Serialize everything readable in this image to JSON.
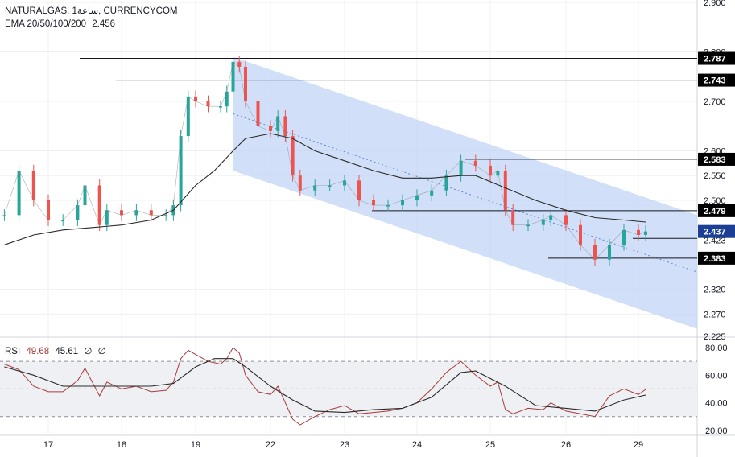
{
  "header": {
    "symbol": "NATURALGAS, 1ساعة, CURRENCYCOM",
    "ema_label": "EMA 20/50/100/200",
    "ema_value": "2.456"
  },
  "rsi_header": {
    "label": "RSI",
    "value": "49.68",
    "signal": "45.61",
    "extra1": "∅",
    "extra2": "∅"
  },
  "colors": {
    "up": "#26a69a",
    "down": "#ef5350",
    "channel": "#c2d6f5",
    "ema": "#2a2a2a",
    "rsi": "#a83a3a",
    "rsi_ma": "#2a2a2a",
    "current_tag": "#1c3f95"
  },
  "chart_data": [
    {
      "type": "candlestick",
      "title": "",
      "x_tick_labels": [
        "17",
        "18",
        "19",
        "22",
        "23",
        "24",
        "25",
        "26",
        "29"
      ],
      "price_axis_labels": [
        "2.900",
        "2.800",
        "2.700",
        "2.600",
        "2.550",
        "2.500",
        "2.320",
        "2.270",
        "2.225"
      ],
      "ylim": [
        2.225,
        2.905
      ],
      "horizontal_levels": [
        {
          "label": "2.787",
          "value": 2.787
        },
        {
          "label": "2.743",
          "value": 2.743
        },
        {
          "label": "2.583",
          "value": 2.583
        },
        {
          "label": "2.479",
          "value": 2.479
        },
        {
          "label": "2.383",
          "value": 2.383
        }
      ],
      "current_price": {
        "label": "2.437",
        "value": 2.437
      },
      "hidden_label": {
        "label": "2.423",
        "value": 2.423
      },
      "channel": {
        "x_start": 19.6,
        "x_end": 29.8,
        "upper_start": 2.79,
        "upper_end": 2.47,
        "lower_start": 2.56,
        "lower_end": 2.24
      },
      "price_path": [
        [
          16.4,
          2.47
        ],
        [
          16.6,
          2.56
        ],
        [
          16.8,
          2.5
        ],
        [
          17.0,
          2.46
        ],
        [
          17.2,
          2.46
        ],
        [
          17.4,
          2.49
        ],
        [
          17.5,
          2.53
        ],
        [
          17.7,
          2.45
        ],
        [
          17.8,
          2.48
        ],
        [
          18.0,
          2.47
        ],
        [
          18.2,
          2.48
        ],
        [
          18.4,
          2.47
        ],
        [
          18.6,
          2.47
        ],
        [
          18.7,
          2.49
        ],
        [
          18.8,
          2.63
        ],
        [
          18.9,
          2.71
        ],
        [
          19.0,
          2.7
        ],
        [
          19.2,
          2.69
        ],
        [
          19.4,
          2.69
        ],
        [
          19.5,
          2.72
        ],
        [
          19.6,
          2.78
        ],
        [
          19.7,
          2.77
        ],
        [
          19.8,
          2.7
        ],
        [
          20.0,
          2.65
        ],
        [
          20.2,
          2.64
        ],
        [
          20.3,
          2.67
        ],
        [
          20.4,
          2.63
        ],
        [
          20.5,
          2.55
        ],
        [
          20.6,
          2.52
        ],
        [
          20.8,
          2.53
        ],
        [
          21.0,
          2.53
        ],
        [
          21.2,
          2.54
        ],
        [
          21.4,
          2.5
        ],
        [
          21.6,
          2.49
        ],
        [
          21.8,
          2.49
        ],
        [
          22.0,
          2.5
        ],
        [
          22.2,
          2.51
        ],
        [
          22.4,
          2.52
        ],
        [
          22.6,
          2.55
        ],
        [
          22.8,
          2.58
        ],
        [
          23.0,
          2.57
        ],
        [
          23.2,
          2.55
        ],
        [
          23.3,
          2.56
        ],
        [
          23.4,
          2.48
        ],
        [
          23.5,
          2.45
        ],
        [
          23.7,
          2.45
        ],
        [
          23.9,
          2.46
        ],
        [
          24.0,
          2.47
        ],
        [
          24.2,
          2.45
        ],
        [
          24.4,
          2.41
        ],
        [
          24.6,
          2.38
        ],
        [
          24.8,
          2.41
        ],
        [
          25.0,
          2.44
        ],
        [
          25.2,
          2.43
        ],
        [
          25.3,
          2.437
        ]
      ],
      "ema_path": [
        [
          16.4,
          2.41
        ],
        [
          16.8,
          2.43
        ],
        [
          17.2,
          2.44
        ],
        [
          17.6,
          2.445
        ],
        [
          18.0,
          2.45
        ],
        [
          18.4,
          2.46
        ],
        [
          18.7,
          2.48
        ],
        [
          19.0,
          2.53
        ],
        [
          19.3,
          2.56
        ],
        [
          19.6,
          2.6
        ],
        [
          19.8,
          2.625
        ],
        [
          20.2,
          2.635
        ],
        [
          20.5,
          2.625
        ],
        [
          20.8,
          2.6
        ],
        [
          21.2,
          2.58
        ],
        [
          21.6,
          2.56
        ],
        [
          22.0,
          2.545
        ],
        [
          22.4,
          2.545
        ],
        [
          22.8,
          2.55
        ],
        [
          23.0,
          2.55
        ],
        [
          23.4,
          2.525
        ],
        [
          23.8,
          2.5
        ],
        [
          24.2,
          2.48
        ],
        [
          24.6,
          2.465
        ],
        [
          25.0,
          2.46
        ],
        [
          25.3,
          2.456
        ]
      ]
    },
    {
      "type": "line",
      "title": "",
      "name": "RSI",
      "y_tick_labels": [
        "80.00",
        "60.00",
        "40.00",
        "20.00"
      ],
      "ylim": [
        17,
        87
      ],
      "bands": [
        70,
        50,
        30
      ],
      "rsi_path": [
        [
          16.4,
          68
        ],
        [
          16.6,
          64
        ],
        [
          16.8,
          52
        ],
        [
          17.0,
          48
        ],
        [
          17.2,
          48
        ],
        [
          17.4,
          56
        ],
        [
          17.5,
          65
        ],
        [
          17.7,
          45
        ],
        [
          17.8,
          55
        ],
        [
          18.0,
          50
        ],
        [
          18.2,
          52
        ],
        [
          18.4,
          48
        ],
        [
          18.6,
          49
        ],
        [
          18.7,
          55
        ],
        [
          18.8,
          72
        ],
        [
          18.9,
          78
        ],
        [
          19.0,
          75
        ],
        [
          19.2,
          70
        ],
        [
          19.4,
          68
        ],
        [
          19.5,
          72
        ],
        [
          19.6,
          80
        ],
        [
          19.7,
          76
        ],
        [
          19.8,
          60
        ],
        [
          20.0,
          48
        ],
        [
          20.2,
          46
        ],
        [
          20.3,
          52
        ],
        [
          20.4,
          40
        ],
        [
          20.5,
          28
        ],
        [
          20.6,
          24
        ],
        [
          20.8,
          30
        ],
        [
          21.0,
          35
        ],
        [
          21.2,
          38
        ],
        [
          21.4,
          32
        ],
        [
          21.6,
          33
        ],
        [
          21.8,
          34
        ],
        [
          22.0,
          36
        ],
        [
          22.2,
          40
        ],
        [
          22.4,
          50
        ],
        [
          22.6,
          62
        ],
        [
          22.8,
          70
        ],
        [
          23.0,
          60
        ],
        [
          23.2,
          52
        ],
        [
          23.3,
          55
        ],
        [
          23.4,
          35
        ],
        [
          23.5,
          32
        ],
        [
          23.7,
          36
        ],
        [
          23.9,
          35
        ],
        [
          24.0,
          40
        ],
        [
          24.2,
          34
        ],
        [
          24.4,
          32
        ],
        [
          24.6,
          30
        ],
        [
          24.8,
          45
        ],
        [
          25.0,
          50
        ],
        [
          25.2,
          46
        ],
        [
          25.3,
          49.68
        ]
      ],
      "rsi_ma_path": [
        [
          16.4,
          66
        ],
        [
          16.8,
          60
        ],
        [
          17.2,
          52
        ],
        [
          17.6,
          52
        ],
        [
          18.0,
          52
        ],
        [
          18.4,
          52
        ],
        [
          18.7,
          54
        ],
        [
          19.0,
          66
        ],
        [
          19.3,
          72
        ],
        [
          19.6,
          72
        ],
        [
          19.8,
          66
        ],
        [
          20.2,
          52
        ],
        [
          20.5,
          42
        ],
        [
          20.8,
          34
        ],
        [
          21.2,
          33
        ],
        [
          21.6,
          35
        ],
        [
          22.0,
          36
        ],
        [
          22.4,
          44
        ],
        [
          22.8,
          62
        ],
        [
          23.0,
          63
        ],
        [
          23.4,
          52
        ],
        [
          23.8,
          38
        ],
        [
          24.2,
          36
        ],
        [
          24.6,
          34
        ],
        [
          25.0,
          42
        ],
        [
          25.3,
          45.61
        ]
      ]
    }
  ]
}
